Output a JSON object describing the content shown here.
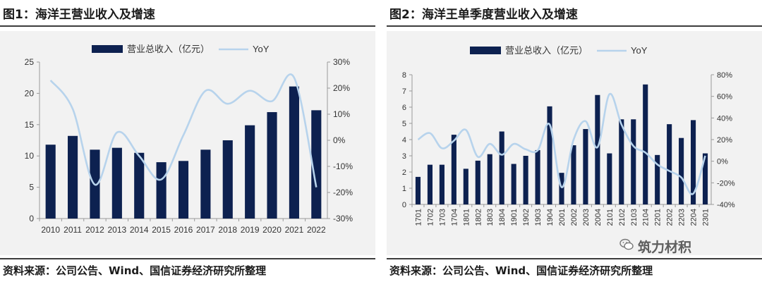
{
  "left": {
    "title": "图1：海洋王营业收入及增速",
    "source": "资料来源：公司公告、Wind、国信证券经济研究所整理"
  },
  "right": {
    "title": "图2：海洋王单季度营业收入及增速",
    "source": "资料来源：公司公告、Wind、国信证券经济研究所整理"
  },
  "watermark": "筑力材积",
  "colors": {
    "bar": "#0d2150",
    "line": "#b7d3ec",
    "axis": "#999999",
    "background": "#f2f2f2"
  },
  "chart_data": [
    {
      "type": "bar",
      "categories": [
        "2010",
        "2011",
        "2012",
        "2013",
        "2014",
        "2015",
        "2016",
        "2017",
        "2018",
        "2019",
        "2020",
        "2021",
        "2022"
      ],
      "series": [
        {
          "name": "营业总收入（亿元）",
          "type": "bar",
          "axis": "left",
          "values": [
            11.8,
            13.2,
            11.0,
            11.3,
            10.5,
            9.0,
            9.2,
            11.0,
            12.5,
            14.9,
            17.0,
            21.1,
            17.3
          ]
        },
        {
          "name": "YoY",
          "type": "line",
          "axis": "right",
          "values": [
            0.23,
            0.12,
            -0.17,
            0.03,
            -0.06,
            -0.15,
            0.02,
            0.19,
            0.14,
            0.19,
            0.15,
            0.24,
            -0.18
          ]
        }
      ],
      "ylim": [
        0,
        25
      ],
      "yticks": [
        "0",
        "5",
        "10",
        "15",
        "20",
        "25"
      ],
      "y2lim": [
        -0.3,
        0.3
      ],
      "y2ticks": [
        "-30%",
        "-20%",
        "-10%",
        "0%",
        "10%",
        "20%",
        "30%"
      ],
      "legend": "top-center",
      "grid": false
    },
    {
      "type": "bar",
      "categories": [
        "1701",
        "1702",
        "1703",
        "1704",
        "1801",
        "1802",
        "1803",
        "1804",
        "1901",
        "1902",
        "1903",
        "1904",
        "2001",
        "2002",
        "2003",
        "2004",
        "2101",
        "2102",
        "2103",
        "2104",
        "2201",
        "2202",
        "2203",
        "2204",
        "2301"
      ],
      "series": [
        {
          "name": "营业总收入（亿元）",
          "type": "bar",
          "axis": "left",
          "values": [
            1.7,
            2.45,
            2.45,
            4.3,
            2.2,
            2.7,
            3.1,
            4.5,
            2.5,
            3.0,
            3.35,
            6.05,
            1.95,
            3.65,
            4.65,
            6.75,
            3.15,
            5.25,
            5.25,
            7.4,
            3.05,
            4.95,
            4.1,
            5.2,
            3.15
          ]
        },
        {
          "name": "YoY",
          "type": "line",
          "axis": "right",
          "values": [
            0.2,
            0.26,
            0.12,
            0.19,
            0.29,
            0.04,
            0.16,
            0.06,
            0.16,
            0.11,
            0.1,
            0.34,
            -0.24,
            0.2,
            0.37,
            0.13,
            0.62,
            0.34,
            0.14,
            0.08,
            -0.03,
            -0.09,
            -0.15,
            -0.3,
            0.05
          ]
        }
      ],
      "ylim": [
        0,
        8
      ],
      "yticks": [
        "0",
        "1",
        "2",
        "3",
        "4",
        "5",
        "6",
        "7",
        "8"
      ],
      "y2lim": [
        -0.4,
        0.8
      ],
      "y2ticks": [
        "-40%",
        "-20%",
        "0%",
        "20%",
        "40%",
        "60%",
        "80%"
      ],
      "legend": "top-center",
      "grid": false
    }
  ]
}
